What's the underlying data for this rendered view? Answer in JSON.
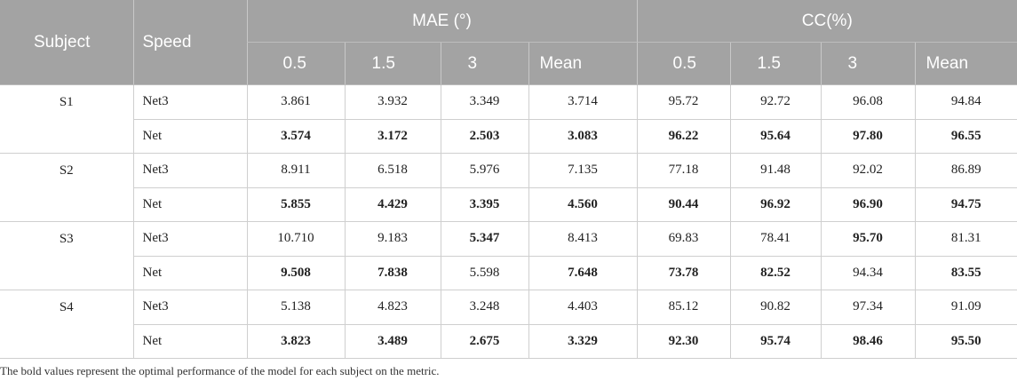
{
  "header": {
    "subject": "Subject",
    "speed": "Speed",
    "groups": [
      {
        "label": "MAE (°)",
        "sub": [
          "0.5",
          "1.5",
          "3",
          "Mean"
        ]
      },
      {
        "label": "CC(%)",
        "sub": [
          "0.5",
          "1.5",
          "3",
          "Mean"
        ]
      }
    ]
  },
  "subjects": [
    {
      "subject": "S1",
      "rows": [
        {
          "speed": "Net3",
          "values": [
            "3.861",
            "3.932",
            "3.349",
            "3.714",
            "95.72",
            "92.72",
            "96.08",
            "94.84"
          ],
          "bold": [
            false,
            false,
            false,
            false,
            false,
            false,
            false,
            false
          ]
        },
        {
          "speed": "Net",
          "values": [
            "3.574",
            "3.172",
            "2.503",
            "3.083",
            "96.22",
            "95.64",
            "97.80",
            "96.55"
          ],
          "bold": [
            true,
            true,
            true,
            true,
            true,
            true,
            true,
            true
          ]
        }
      ]
    },
    {
      "subject": "S2",
      "rows": [
        {
          "speed": "Net3",
          "values": [
            "8.911",
            "6.518",
            "5.976",
            "7.135",
            "77.18",
            "91.48",
            "92.02",
            "86.89"
          ],
          "bold": [
            false,
            false,
            false,
            false,
            false,
            false,
            false,
            false
          ]
        },
        {
          "speed": "Net",
          "values": [
            "5.855",
            "4.429",
            "3.395",
            "4.560",
            "90.44",
            "96.92",
            "96.90",
            "94.75"
          ],
          "bold": [
            true,
            true,
            true,
            true,
            true,
            true,
            true,
            true
          ]
        }
      ]
    },
    {
      "subject": "S3",
      "rows": [
        {
          "speed": "Net3",
          "values": [
            "10.710",
            "9.183",
            "5.347",
            "8.413",
            "69.83",
            "78.41",
            "95.70",
            "81.31"
          ],
          "bold": [
            false,
            false,
            true,
            false,
            false,
            false,
            true,
            false
          ]
        },
        {
          "speed": "Net",
          "values": [
            "9.508",
            "7.838",
            "5.598",
            "7.648",
            "73.78",
            "82.52",
            "94.34",
            "83.55"
          ],
          "bold": [
            true,
            true,
            false,
            true,
            true,
            true,
            false,
            true
          ]
        }
      ]
    },
    {
      "subject": "S4",
      "rows": [
        {
          "speed": "Net3",
          "values": [
            "5.138",
            "4.823",
            "3.248",
            "4.403",
            "85.12",
            "90.82",
            "97.34",
            "91.09"
          ],
          "bold": [
            false,
            false,
            false,
            false,
            false,
            false,
            false,
            false
          ]
        },
        {
          "speed": "Net",
          "values": [
            "3.823",
            "3.489",
            "2.675",
            "3.329",
            "92.30",
            "95.74",
            "98.46",
            "95.50"
          ],
          "bold": [
            true,
            true,
            true,
            true,
            true,
            true,
            true,
            true
          ]
        }
      ]
    }
  ],
  "footnote": "The bold values represent the optimal performance of the model for each subject on the metric."
}
